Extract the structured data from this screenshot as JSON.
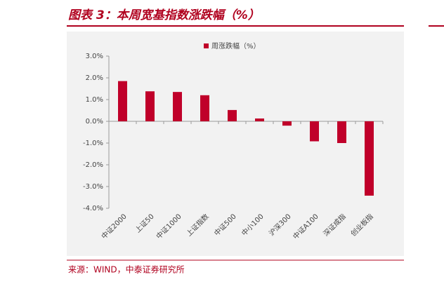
{
  "chart_data": {
    "type": "bar",
    "title": "图表 3：本周宽基指数涨跌幅（%）",
    "source": "来源：WIND，中泰证券研究所",
    "categories": [
      "中证2000",
      "上证50",
      "中证1000",
      "上证指数",
      "中证500",
      "中小100",
      "沪深300",
      "中证A100",
      "深证成指",
      "创业板指"
    ],
    "series": [
      {
        "name": "周涨跌幅（%）",
        "color": "#c0002a",
        "values": [
          1.85,
          1.38,
          1.35,
          1.2,
          0.52,
          0.13,
          -0.2,
          -0.92,
          -1.0,
          -3.42
        ]
      }
    ],
    "ylim": [
      -4,
      3
    ],
    "yticks": [
      {
        "value": 3,
        "label": "3.0%"
      },
      {
        "value": 2,
        "label": "2.0%"
      },
      {
        "value": 1,
        "label": "1.0%"
      },
      {
        "value": 0,
        "label": "0.0%"
      },
      {
        "value": -1,
        "label": "-1.0%"
      },
      {
        "value": -2,
        "label": "-2.0%"
      },
      {
        "value": -3,
        "label": "-3.0%"
      },
      {
        "value": -4,
        "label": "-4.0%"
      }
    ],
    "legend": "top"
  }
}
